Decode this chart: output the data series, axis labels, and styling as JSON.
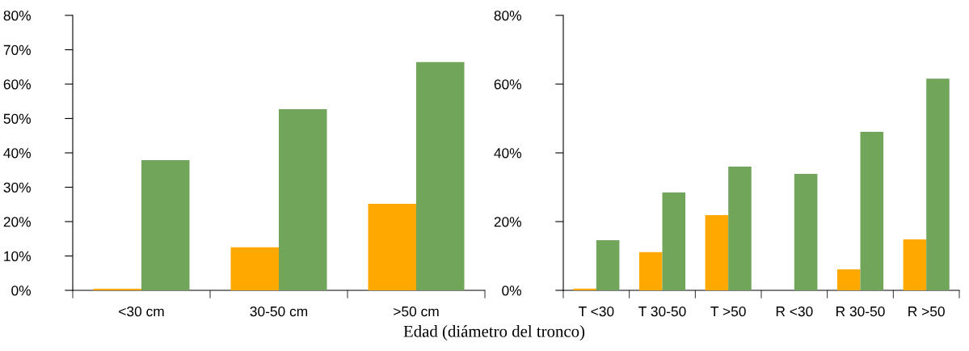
{
  "chart_data": [
    {
      "type": "bar",
      "xlabel": "Edad (diámetro del tronco)",
      "categories": [
        "<30 cm",
        "30-50 cm",
        ">50 cm"
      ],
      "series": [
        {
          "color": "#ffa800",
          "values": [
            0.5,
            12.5,
            25.2
          ]
        },
        {
          "color": "#70a55a",
          "values": [
            37.9,
            52.7,
            66.4
          ]
        }
      ],
      "ylim": [
        0,
        80
      ],
      "yticks": [
        {
          "value": 0,
          "label": "0%"
        },
        {
          "value": 10,
          "label": "10%"
        },
        {
          "value": 20,
          "label": "20%"
        },
        {
          "value": 30,
          "label": "30%"
        },
        {
          "value": 40,
          "label": "40%"
        },
        {
          "value": 50,
          "label": "50%"
        },
        {
          "value": 60,
          "label": "60%"
        },
        {
          "value": 70,
          "label": "70%"
        },
        {
          "value": 80,
          "label": "80%"
        }
      ]
    },
    {
      "type": "bar",
      "categories": [
        "T <30",
        "T 30-50",
        "T >50",
        "R <30",
        "R 30-50",
        "R >50"
      ],
      "series": [
        {
          "color": "#ffa800",
          "values": [
            0.5,
            11.1,
            21.9,
            0,
            6.1,
            14.8
          ]
        },
        {
          "color": "#70a55a",
          "values": [
            14.6,
            28.5,
            36.0,
            33.9,
            46.1,
            61.6
          ]
        }
      ],
      "ylim": [
        0,
        80
      ],
      "yticks": [
        {
          "value": 0,
          "label": "0%"
        },
        {
          "value": 20,
          "label": "20%"
        },
        {
          "value": 40,
          "label": "40%"
        },
        {
          "value": 60,
          "label": "60%"
        },
        {
          "value": 80,
          "label": "80%"
        }
      ]
    }
  ]
}
